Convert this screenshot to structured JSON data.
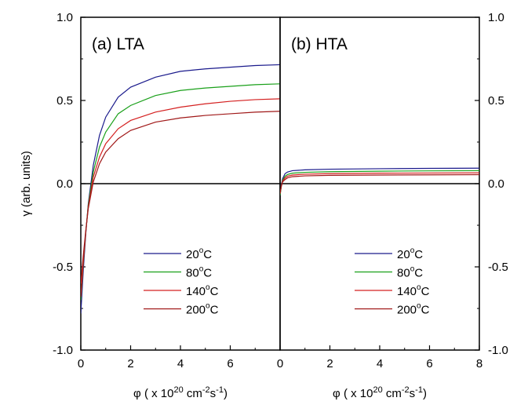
{
  "chart_data": {
    "type": "line",
    "ylabel": "γ (arb. units)",
    "ylim": [
      -1.0,
      1.0
    ],
    "yticks": [
      -1.0,
      -0.5,
      0.0,
      0.5,
      1.0
    ],
    "ytick_labels": [
      "-1.0",
      "-0.5",
      "0.0",
      "0.5",
      "1.0"
    ],
    "zero_line": true,
    "legend_position": "lower-center",
    "colors": {
      "20": "#1a1a8c",
      "80": "#1aa01a",
      "140": "#d42020",
      "200": "#a01818"
    },
    "panels": [
      {
        "label": "(a) LTA",
        "xlim": [
          0,
          8
        ],
        "xticks": [
          0,
          2,
          4,
          6
        ],
        "xlabel": {
          "prefix": "φ ( x 10",
          "exp1": "20",
          "mid": " cm",
          "exp2": "-2",
          "mid2": "s",
          "exp3": "-1",
          "suffix": ")"
        },
        "series": [
          {
            "name": "20",
            "unit": "C",
            "color": "#1a1a8c",
            "x": [
              0.0,
              0.1,
              0.2,
              0.3,
              0.5,
              0.75,
              1.0,
              1.5,
              2.0,
              3.0,
              4.0,
              5.0,
              6.0,
              7.0,
              8.0
            ],
            "y": [
              -0.78,
              -0.52,
              -0.3,
              -0.12,
              0.11,
              0.29,
              0.4,
              0.52,
              0.58,
              0.64,
              0.675,
              0.69,
              0.7,
              0.71,
              0.715
            ]
          },
          {
            "name": "80",
            "unit": "C",
            "color": "#1aa01a",
            "x": [
              0.0,
              0.1,
              0.2,
              0.3,
              0.5,
              0.75,
              1.0,
              1.5,
              2.0,
              3.0,
              4.0,
              5.0,
              6.0,
              7.0,
              8.0
            ],
            "y": [
              -0.7,
              -0.48,
              -0.29,
              -0.13,
              0.07,
              0.22,
              0.31,
              0.42,
              0.47,
              0.53,
              0.56,
              0.575,
              0.585,
              0.595,
              0.6
            ]
          },
          {
            "name": "140",
            "unit": "C",
            "color": "#d42020",
            "x": [
              0.0,
              0.1,
              0.2,
              0.3,
              0.5,
              0.75,
              1.0,
              1.5,
              2.0,
              3.0,
              4.0,
              5.0,
              6.0,
              7.0,
              8.0
            ],
            "y": [
              -0.68,
              -0.47,
              -0.29,
              -0.14,
              0.04,
              0.16,
              0.24,
              0.33,
              0.38,
              0.43,
              0.46,
              0.48,
              0.495,
              0.505,
              0.51
            ]
          },
          {
            "name": "200",
            "unit": "C",
            "color": "#a01818",
            "x": [
              0.0,
              0.1,
              0.2,
              0.3,
              0.5,
              0.75,
              1.0,
              1.5,
              2.0,
              3.0,
              4.0,
              5.0,
              6.0,
              7.0,
              8.0
            ],
            "y": [
              -0.6,
              -0.43,
              -0.28,
              -0.15,
              0.01,
              0.12,
              0.19,
              0.27,
              0.32,
              0.37,
              0.395,
              0.41,
              0.42,
              0.43,
              0.435
            ]
          }
        ]
      },
      {
        "label": "(b) HTA",
        "xlim": [
          0,
          8
        ],
        "xticks": [
          0,
          2,
          4,
          6,
          8
        ],
        "xlabel": {
          "prefix": "φ ( x 10",
          "exp1": "20",
          "mid": " cm",
          "exp2": "-2",
          "mid2": "s",
          "exp3": "-1",
          "suffix": ")"
        },
        "series": [
          {
            "name": "20",
            "unit": "C",
            "color": "#1a1a8c",
            "x": [
              0.0,
              0.05,
              0.1,
              0.2,
              0.3,
              0.5,
              1.0,
              2.0,
              4.0,
              6.0,
              8.0
            ],
            "y": [
              -0.07,
              -0.01,
              0.03,
              0.06,
              0.07,
              0.078,
              0.083,
              0.087,
              0.09,
              0.092,
              0.093
            ]
          },
          {
            "name": "80",
            "unit": "C",
            "color": "#1aa01a",
            "x": [
              0.0,
              0.05,
              0.1,
              0.2,
              0.3,
              0.5,
              1.0,
              2.0,
              4.0,
              6.0,
              8.0
            ],
            "y": [
              -0.07,
              -0.015,
              0.02,
              0.045,
              0.055,
              0.063,
              0.068,
              0.072,
              0.075,
              0.077,
              0.078
            ]
          },
          {
            "name": "140",
            "unit": "C",
            "color": "#d42020",
            "x": [
              0.0,
              0.05,
              0.1,
              0.2,
              0.3,
              0.5,
              1.0,
              2.0,
              4.0,
              6.0,
              8.0
            ],
            "y": [
              -0.06,
              -0.015,
              0.015,
              0.035,
              0.045,
              0.052,
              0.057,
              0.06,
              0.063,
              0.064,
              0.065
            ]
          },
          {
            "name": "200",
            "unit": "C",
            "color": "#a01818",
            "x": [
              0.0,
              0.05,
              0.1,
              0.2,
              0.3,
              0.5,
              1.0,
              2.0,
              4.0,
              6.0,
              8.0
            ],
            "y": [
              -0.05,
              -0.015,
              0.01,
              0.025,
              0.035,
              0.042,
              0.047,
              0.05,
              0.052,
              0.053,
              0.054
            ]
          }
        ]
      }
    ]
  }
}
